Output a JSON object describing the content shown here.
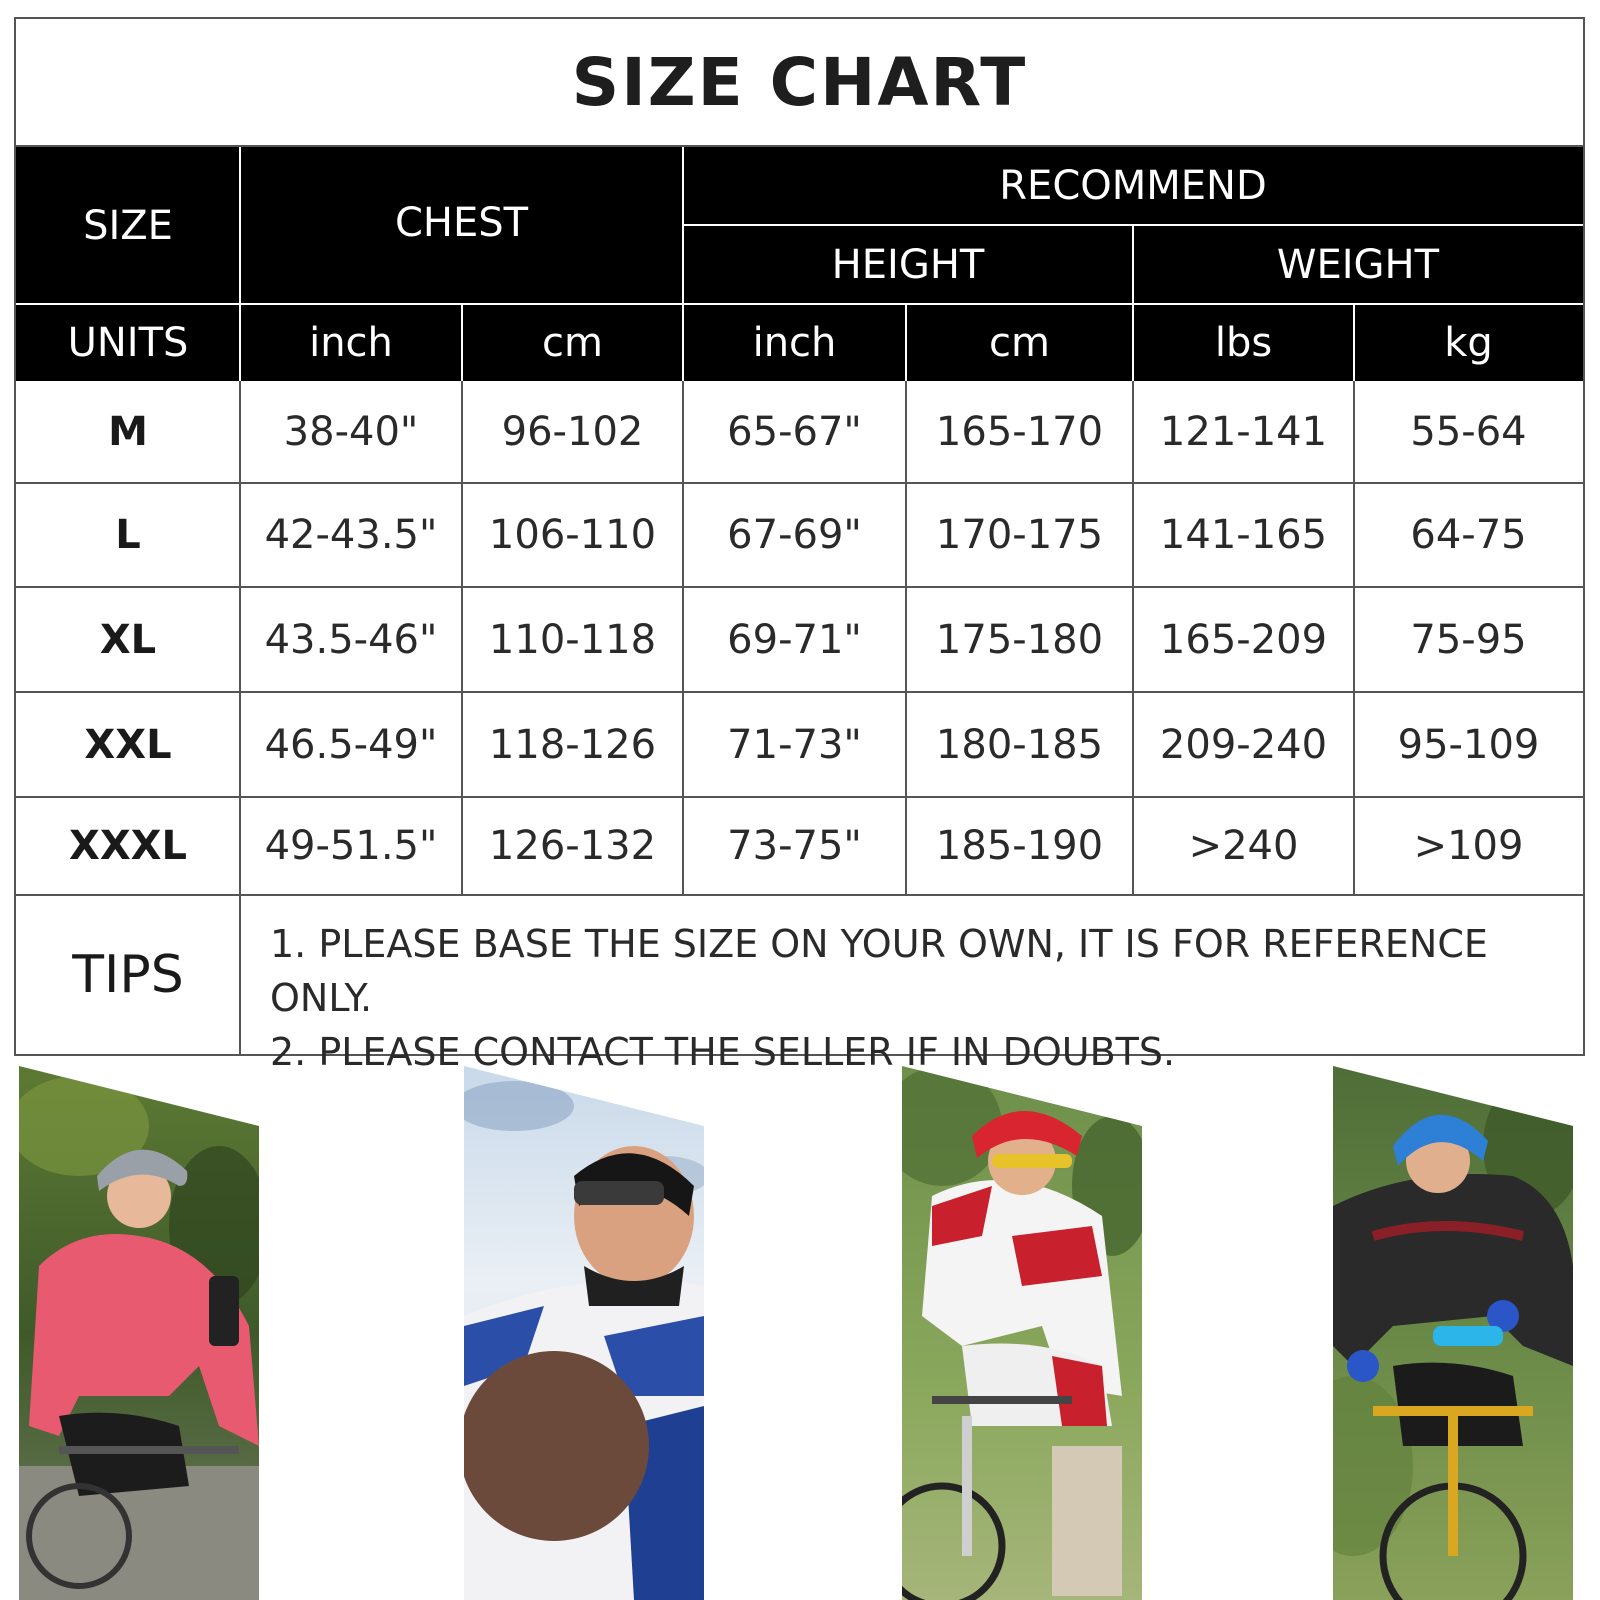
{
  "title": "SIZE CHART",
  "headers": {
    "size": "SIZE",
    "chest": "CHEST",
    "recommend": "RECOMMEND",
    "height": "HEIGHT",
    "weight": "WEIGHT",
    "units": "UNITS",
    "unit_labels": [
      "inch",
      "cm",
      "inch",
      "cm",
      "lbs",
      "kg"
    ]
  },
  "rows": [
    {
      "size": "M",
      "chest_inch": "38-40\"",
      "chest_cm": "96-102",
      "height_inch": "65-67\"",
      "height_cm": "165-170",
      "weight_lbs": "121-141",
      "weight_kg": "55-64"
    },
    {
      "size": "L",
      "chest_inch": "42-43.5\"",
      "chest_cm": "106-110",
      "height_inch": "67-69\"",
      "height_cm": "170-175",
      "weight_lbs": "141-165",
      "weight_kg": "64-75"
    },
    {
      "size": "XL",
      "chest_inch": "43.5-46\"",
      "chest_cm": "110-118",
      "height_inch": "69-71\"",
      "height_cm": "175-180",
      "weight_lbs": "165-209",
      "weight_kg": "75-95"
    },
    {
      "size": "XXL",
      "chest_inch": "46.5-49\"",
      "chest_cm": "118-126",
      "height_inch": "71-73\"",
      "height_cm": "180-185",
      "weight_lbs": "209-240",
      "weight_kg": "95-109"
    },
    {
      "size": "XXXL",
      "chest_inch": "49-51.5\"",
      "chest_cm": "126-132",
      "height_inch": "73-75\"",
      "height_cm": "185-190",
      "weight_lbs": ">240",
      "weight_kg": ">109"
    }
  ],
  "tips": {
    "label": "TIPS",
    "lines": [
      "1. PLEASE BASE THE SIZE ON YOUR OWN, IT IS FOR REFERENCE ONLY.",
      "2. PLEASE CONTACT THE SELLER IF IN DOUBTS."
    ]
  },
  "photos": [
    {
      "subject": "woman-cyclist-pink-jacket"
    },
    {
      "subject": "cyclist-looking-up-blue-jersey"
    },
    {
      "subject": "road-cyclist-red-white-kit"
    },
    {
      "subject": "mountain-biker-black-jacket"
    }
  ],
  "colors": {
    "header_bg": "#000000",
    "header_text": "#ffffff",
    "border": "#555555"
  }
}
